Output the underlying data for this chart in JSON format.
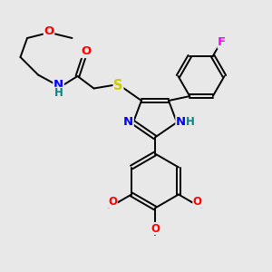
{
  "bg_color": "#e8e8e8",
  "bond_color": "#000000",
  "bond_width": 1.4,
  "atom_colors": {
    "O": "#ff0000",
    "N": "#0000ff",
    "S": "#cccc00",
    "F": "#ff00ff",
    "H": "#008888",
    "C": "#000000"
  },
  "font_size": 8.5,
  "title": ""
}
